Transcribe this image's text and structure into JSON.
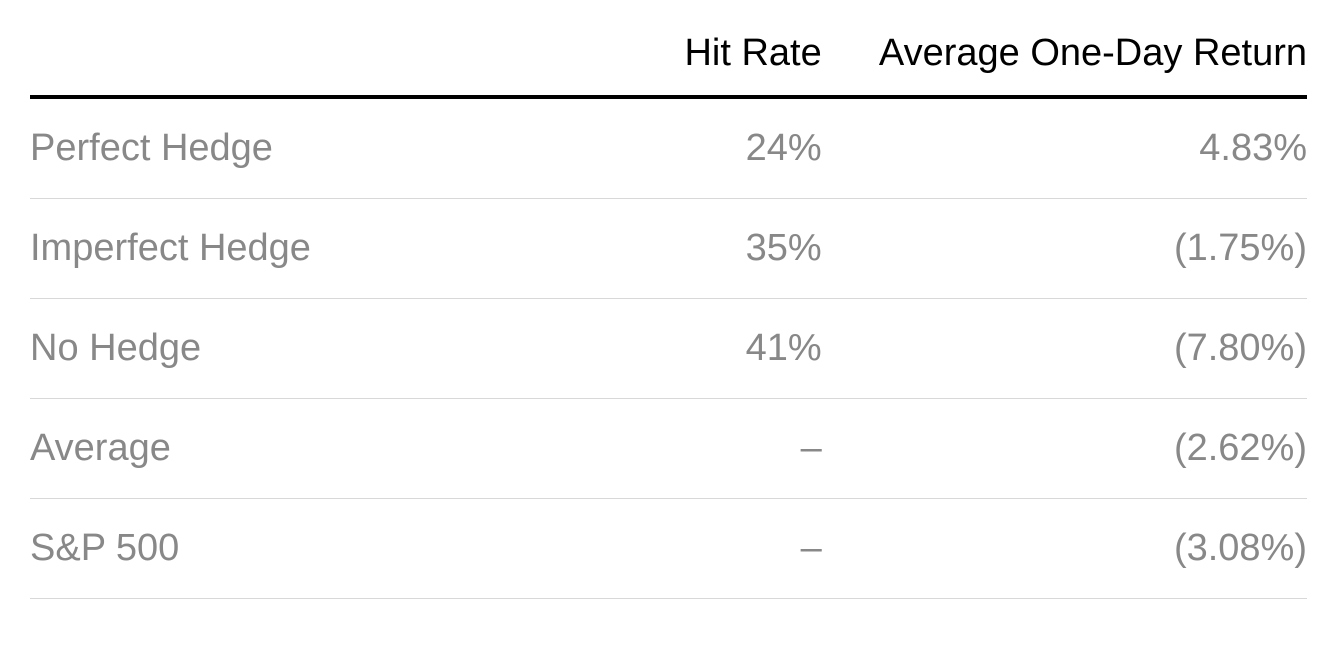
{
  "table": {
    "type": "table",
    "background_color": "#ffffff",
    "header_text_color": "#000000",
    "body_text_color": "#888888",
    "header_border_color": "#000000",
    "row_border_color": "#d8d8d8",
    "font_size_pt": 29,
    "columns": [
      {
        "key": "label",
        "header": "",
        "align": "left",
        "width_pct": 38
      },
      {
        "key": "hit_rate",
        "header": "Hit Rate",
        "align": "right",
        "width_pct": 24
      },
      {
        "key": "avg_return",
        "header": "Average One-Day Return",
        "align": "right",
        "width_pct": 38
      }
    ],
    "rows": [
      {
        "label": "Perfect Hedge",
        "hit_rate": "24%",
        "avg_return": "4.83%"
      },
      {
        "label": "Imperfect Hedge",
        "hit_rate": "35%",
        "avg_return": "(1.75%)"
      },
      {
        "label": "No Hedge",
        "hit_rate": "41%",
        "avg_return": "(7.80%)"
      },
      {
        "label": "Average",
        "hit_rate": "–",
        "avg_return": "(2.62%)"
      },
      {
        "label": "S&P 500",
        "hit_rate": "–",
        "avg_return": "(3.08%)"
      }
    ]
  }
}
